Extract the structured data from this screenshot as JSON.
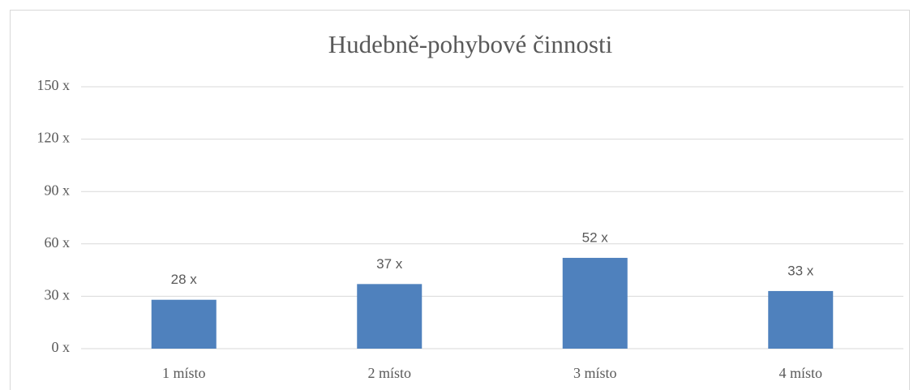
{
  "chart_data": {
    "type": "bar",
    "title": "Hudebně-pohybové činnosti",
    "categories": [
      "1 místo",
      "2 místo",
      "3 místo",
      "4 místo"
    ],
    "values": [
      28,
      37,
      52,
      33
    ],
    "value_labels": [
      "28 x",
      "37 x",
      "52 x",
      "33 x"
    ],
    "color": "#4f81bd",
    "ylim": [
      0,
      150
    ],
    "yticks": [
      {
        "value": 0,
        "label": "0 x"
      },
      {
        "value": 30,
        "label": "30 x"
      },
      {
        "value": 60,
        "label": "60 x"
      },
      {
        "value": 90,
        "label": "90 x"
      },
      {
        "value": 120,
        "label": "120 x"
      },
      {
        "value": 150,
        "label": "150 x"
      }
    ],
    "grid": true
  }
}
